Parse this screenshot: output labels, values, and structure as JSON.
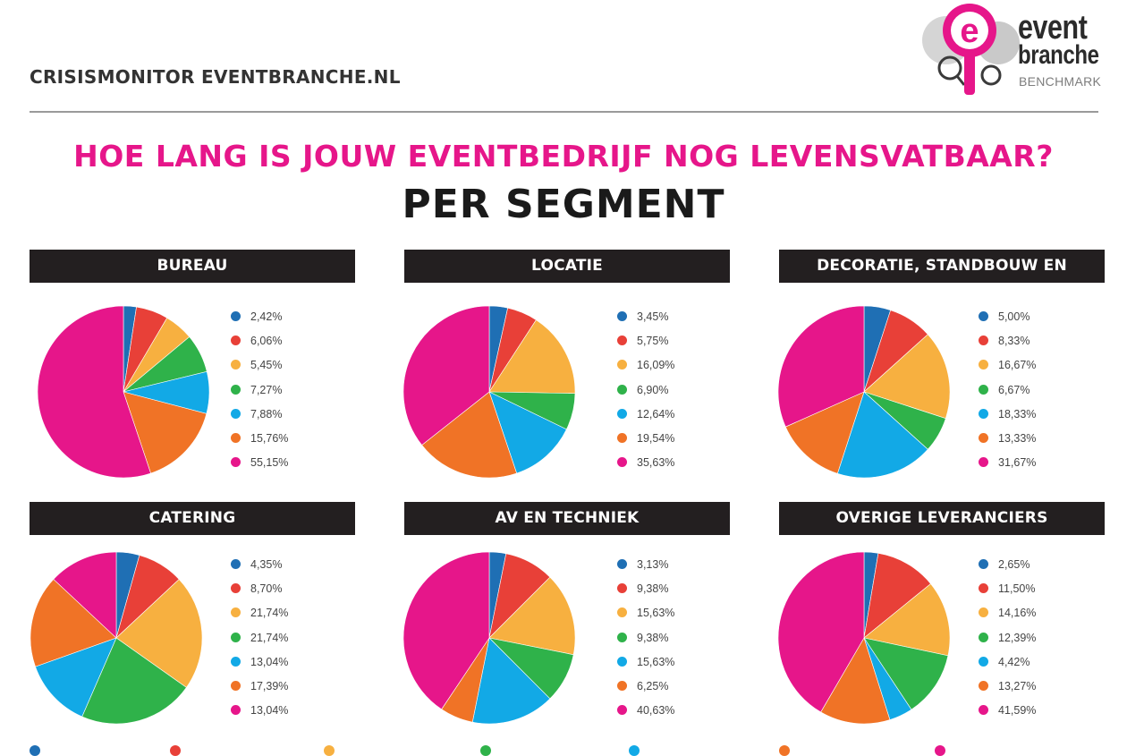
{
  "header": {
    "site_title": "CRISISMONITOR EVENTBRANCHE.NL",
    "logo": {
      "word1": "event",
      "word2": "branche",
      "word3": "BENCHMARK"
    },
    "main_title": "HOE LANG IS JOUW EVENTBEDRIJF NOG LEVENSVATBAAR?",
    "sub_title": "PER SEGMENT"
  },
  "colors": {
    "dark_blue": "#1f6fb4",
    "red": "#e84038",
    "yellow": "#f7b040",
    "green": "#2fb24a",
    "light_blue": "#12a9e6",
    "orange": "#f07326",
    "magenta": "#e6168a",
    "header_bg": "#231f20"
  },
  "chart_data": [
    {
      "type": "pie",
      "title": "BUREAU",
      "values": [
        2.42,
        6.06,
        5.45,
        7.27,
        7.88,
        15.76,
        55.15
      ],
      "labels": [
        "2,42%",
        "6,06%",
        "5,45%",
        "7,27%",
        "7,88%",
        "15,76%",
        "55,15%"
      ]
    },
    {
      "type": "pie",
      "title": "LOCATIE",
      "values": [
        3.45,
        5.75,
        16.09,
        6.9,
        12.64,
        19.54,
        35.63
      ],
      "labels": [
        "3,45%",
        "5,75%",
        "16,09%",
        "6,90%",
        "12,64%",
        "19,54%",
        "35,63%"
      ]
    },
    {
      "type": "pie",
      "title": "DECORATIE, STANDBOUW EN VERHUUR",
      "values": [
        5.0,
        8.33,
        16.67,
        6.67,
        18.33,
        13.33,
        31.67
      ],
      "labels": [
        "5,00%",
        "8,33%",
        "16,67%",
        "6,67%",
        "18,33%",
        "13,33%",
        "31,67%"
      ]
    },
    {
      "type": "pie",
      "title": "CATERING",
      "values": [
        4.35,
        8.7,
        21.74,
        21.74,
        13.04,
        17.39,
        13.04
      ],
      "labels": [
        "4,35%",
        "8,70%",
        "21,74%",
        "21,74%",
        "13,04%",
        "17,39%",
        "13,04%"
      ]
    },
    {
      "type": "pie",
      "title": "AV EN TECHNIEK",
      "values": [
        3.13,
        9.38,
        15.63,
        9.38,
        15.63,
        6.25,
        40.63
      ],
      "labels": [
        "3,13%",
        "9,38%",
        "15,63%",
        "9,38%",
        "15,63%",
        "6,25%",
        "40,63%"
      ]
    },
    {
      "type": "pie",
      "title": "OVERIGE LEVERANCIERS",
      "values": [
        2.65,
        11.5,
        14.16,
        12.39,
        4.42,
        13.27,
        41.59
      ],
      "labels": [
        "2,65%",
        "11,50%",
        "14,16%",
        "12,39%",
        "4,42%",
        "13,27%",
        "41,59%"
      ]
    }
  ]
}
